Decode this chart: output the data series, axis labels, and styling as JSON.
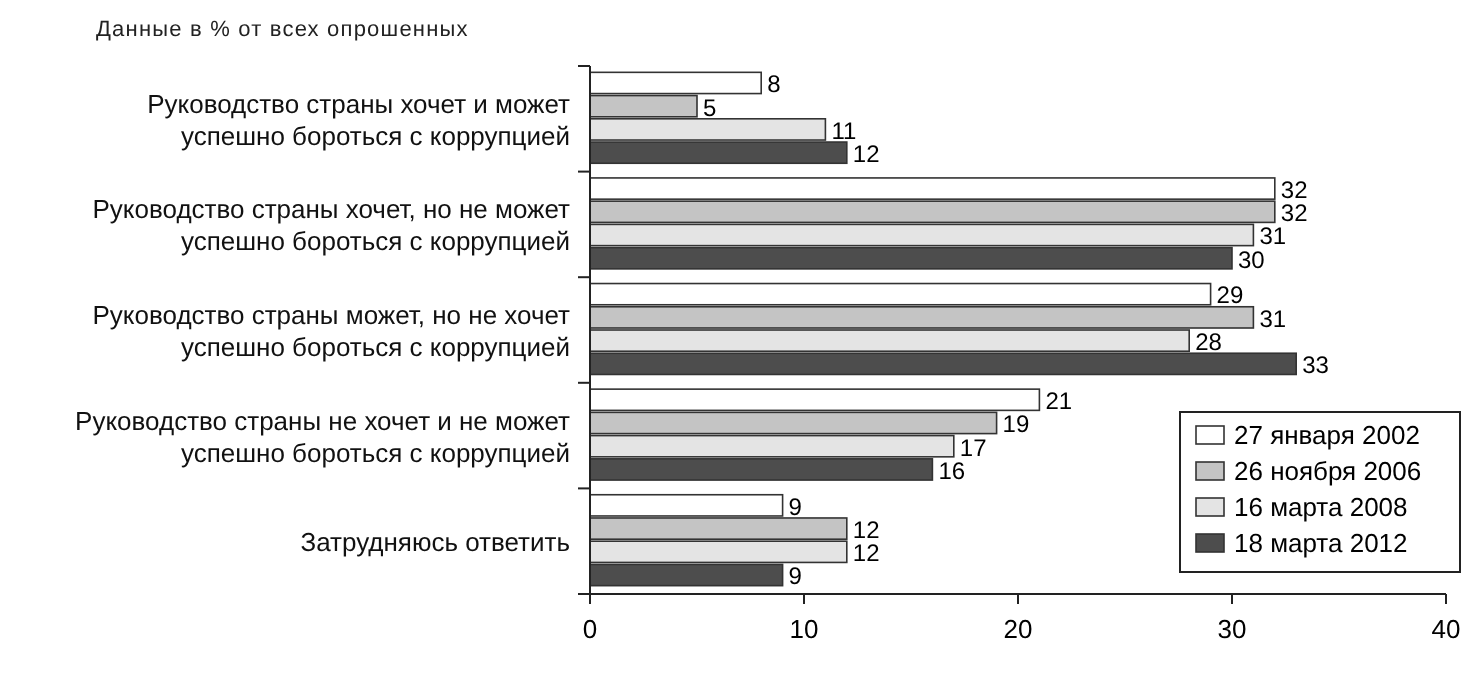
{
  "chart_data": {
    "type": "bar",
    "orientation": "horizontal",
    "title": "Данные в % от всех опрошенных",
    "categories": [
      "Руководство страны хочет и может\nуспешно бороться с коррупцией",
      "Руководство страны хочет, но не может\nуспешно бороться с коррупцией",
      "Руководство страны может, но не хочет\nуспешно бороться с коррупцией",
      "Руководство страны не хочет и не может\nуспешно бороться с коррупцией",
      "Затрудняюсь ответить"
    ],
    "series": [
      {
        "name": "27 января 2002",
        "color": "#ffffff",
        "values": [
          8,
          32,
          29,
          21,
          9
        ]
      },
      {
        "name": "26 ноября 2006",
        "color": "#c4c4c4",
        "values": [
          5,
          32,
          31,
          19,
          12
        ]
      },
      {
        "name": "16 марта 2008",
        "color": "#e4e4e4",
        "values": [
          11,
          31,
          28,
          17,
          12
        ]
      },
      {
        "name": "18 марта 2012",
        "color": "#4d4d4d",
        "values": [
          12,
          30,
          33,
          16,
          9
        ]
      }
    ],
    "xlim": [
      0,
      40
    ],
    "xticks": [
      0,
      10,
      20,
      30,
      40
    ],
    "data_labels": true,
    "legend": "bottom right",
    "grid": false
  }
}
